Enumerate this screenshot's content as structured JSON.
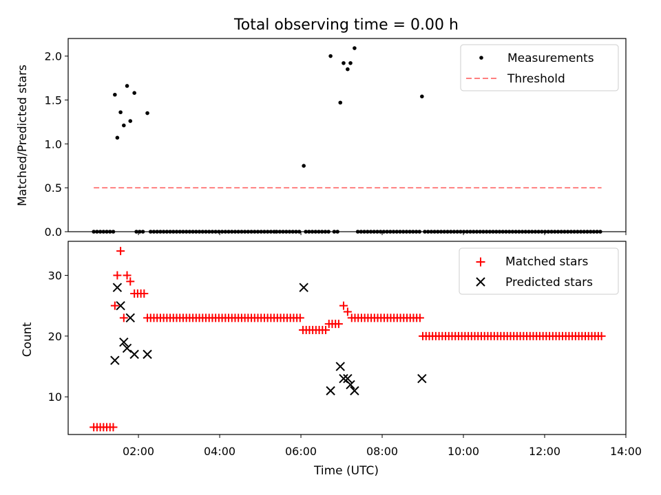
{
  "chart_data": {
    "title": "Total observing time = 0.00 h",
    "xlabel": "Time (UTC)",
    "xlim": [
      0.27,
      14.0
    ],
    "xticks": [
      {
        "v": 2,
        "label": "02:00"
      },
      {
        "v": 4,
        "label": "04:00"
      },
      {
        "v": 6,
        "label": "06:00"
      },
      {
        "v": 8,
        "label": "08:00"
      },
      {
        "v": 10,
        "label": "10:00"
      },
      {
        "v": 12,
        "label": "12:00"
      },
      {
        "v": 14,
        "label": "14:00"
      }
    ],
    "panels": [
      {
        "type": "scatter",
        "ylabel": "Matched/Predicted stars",
        "ylim": [
          0,
          2.2
        ],
        "yticks": [
          {
            "v": 0,
            "label": "0.0"
          },
          {
            "v": 0.5,
            "label": "0.5"
          },
          {
            "v": 1.0,
            "label": "1.0"
          },
          {
            "v": 1.5,
            "label": "1.5"
          },
          {
            "v": 2.0,
            "label": "2.0"
          }
        ],
        "legend_position": "top-right",
        "measurements": {
          "name": "Measurements",
          "color": "#000000",
          "nonzero_points": [
            [
              1.42,
              1.56
            ],
            [
              1.48,
              1.07
            ],
            [
              1.56,
              1.36
            ],
            [
              1.64,
              1.21
            ],
            [
              1.72,
              1.66
            ],
            [
              1.8,
              1.26
            ],
            [
              1.9,
              1.58
            ],
            [
              2.22,
              1.35
            ],
            [
              6.07,
              0.75
            ],
            [
              6.73,
              2.0
            ],
            [
              6.97,
              1.47
            ],
            [
              7.05,
              1.92
            ],
            [
              7.15,
              1.85
            ],
            [
              7.22,
              1.92
            ],
            [
              7.32,
              2.09
            ],
            [
              8.98,
              1.54
            ]
          ],
          "zero_segments": [
            [
              0.9,
              1.4
            ],
            [
              1.95,
              2.15
            ],
            [
              2.3,
              5.35
            ],
            [
              5.4,
              6.0
            ],
            [
              6.12,
              6.72
            ],
            [
              6.82,
              6.92
            ],
            [
              7.4,
              8.93
            ],
            [
              9.05,
              13.4
            ]
          ],
          "zero_step": 0.08
        },
        "threshold": {
          "name": "Threshold",
          "value": 0.5,
          "x_range": [
            0.9,
            13.4
          ],
          "color": "#ff7f7f"
        }
      },
      {
        "type": "scatter",
        "ylabel": "Count",
        "ylim": [
          3.8,
          35.6
        ],
        "yticks": [
          {
            "v": 10,
            "label": "10"
          },
          {
            "v": 20,
            "label": "20"
          },
          {
            "v": 30,
            "label": "30"
          }
        ],
        "legend_position": "top-right",
        "matched": {
          "name": "Matched stars",
          "color": "#ff0000",
          "points": [
            [
              0.9,
              5
            ],
            [
              0.98,
              5
            ],
            [
              1.06,
              5
            ],
            [
              1.14,
              5
            ],
            [
              1.22,
              5
            ],
            [
              1.3,
              5
            ],
            [
              1.38,
              5
            ],
            [
              1.42,
              25
            ],
            [
              1.48,
              30
            ],
            [
              1.56,
              34
            ],
            [
              1.64,
              23
            ],
            [
              1.72,
              30
            ],
            [
              1.8,
              29
            ],
            [
              1.9,
              27
            ],
            [
              1.98,
              27
            ],
            [
              2.06,
              27
            ],
            [
              2.14,
              27
            ],
            [
              6.05,
              21
            ],
            [
              6.13,
              21
            ],
            [
              6.21,
              21
            ],
            [
              6.29,
              21
            ],
            [
              6.37,
              21
            ],
            [
              6.45,
              21
            ],
            [
              6.53,
              21
            ],
            [
              6.61,
              21
            ],
            [
              6.69,
              22
            ],
            [
              6.77,
              22
            ],
            [
              6.85,
              22
            ],
            [
              6.93,
              22
            ],
            [
              7.05,
              25
            ],
            [
              7.15,
              24
            ]
          ],
          "constant_runs": [
            {
              "x_range": [
                2.22,
                6.0
              ],
              "y": 23,
              "step": 0.08
            },
            {
              "x_range": [
                7.25,
                8.95
              ],
              "y": 23,
              "step": 0.08
            },
            {
              "x_range": [
                9.0,
                13.4
              ],
              "y": 20,
              "step": 0.08
            }
          ]
        },
        "predicted": {
          "name": "Predicted stars",
          "color": "#000000",
          "points": [
            [
              1.42,
              16
            ],
            [
              1.48,
              28
            ],
            [
              1.56,
              25
            ],
            [
              1.64,
              19
            ],
            [
              1.72,
              18
            ],
            [
              1.8,
              23
            ],
            [
              1.9,
              17
            ],
            [
              2.22,
              17
            ],
            [
              6.07,
              28
            ],
            [
              6.73,
              11
            ],
            [
              6.97,
              15
            ],
            [
              7.05,
              13
            ],
            [
              7.15,
              13
            ],
            [
              7.22,
              12
            ],
            [
              7.32,
              11
            ],
            [
              8.98,
              13
            ]
          ]
        }
      }
    ]
  }
}
